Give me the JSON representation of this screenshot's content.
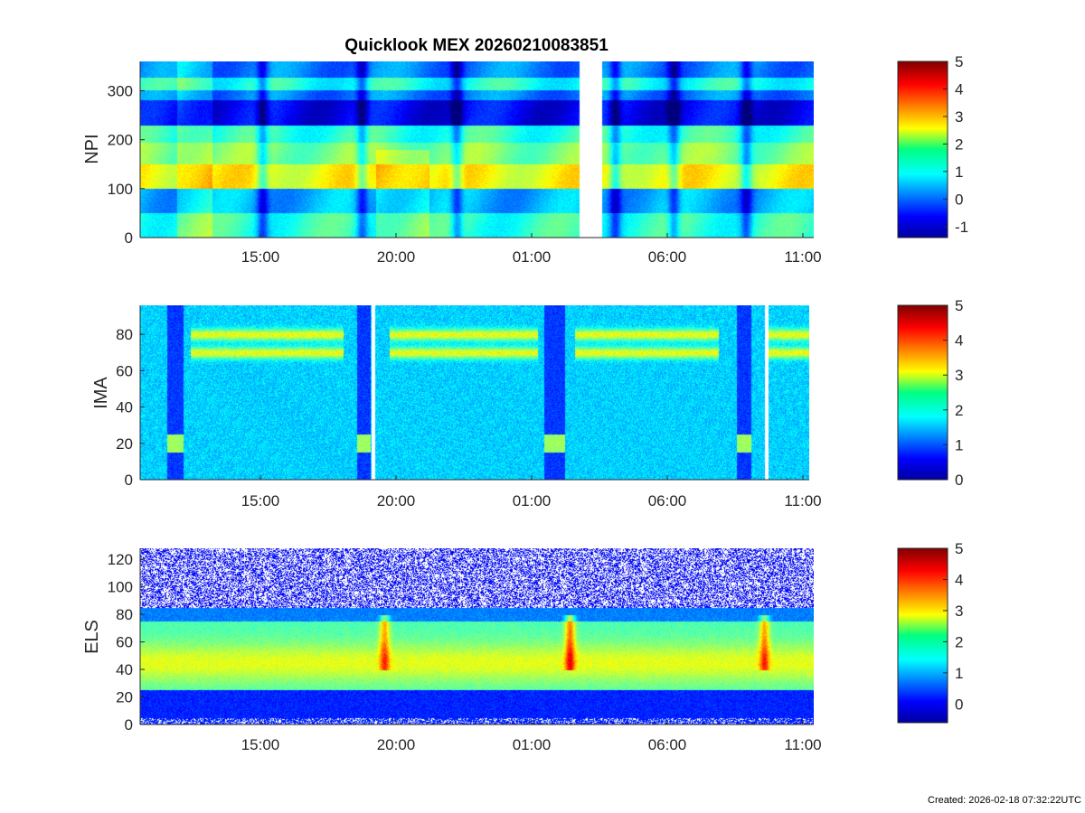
{
  "chart_data": [
    {
      "type": "heatmap",
      "title": "Quicklook MEX 20260210083851",
      "ylabel": "NPI",
      "ylim": [
        0,
        360
      ],
      "yticks": [
        "0",
        "100",
        "200",
        "300"
      ],
      "xticks": [
        "15:00",
        "20:00",
        "01:00",
        "06:00",
        "11:00"
      ],
      "colorbar": {
        "ticks": [
          "5",
          "4",
          "3",
          "2",
          "1",
          "0",
          "-1"
        ],
        "range": [
          -1.4,
          5
        ]
      },
      "gaps": [
        [
          "02:45",
          "03:35"
        ]
      ]
    },
    {
      "type": "heatmap",
      "ylabel": "IMA",
      "ylim": [
        0,
        96
      ],
      "yticks": [
        "0",
        "20",
        "40",
        "60",
        "80"
      ],
      "xticks": [
        "15:00",
        "20:00",
        "01:00",
        "06:00",
        "11:00"
      ],
      "colorbar": {
        "ticks": [
          "5",
          "4",
          "3",
          "2",
          "1",
          "0"
        ],
        "range": [
          0,
          5
        ]
      },
      "gaps": [
        [
          "19:10",
          "19:15"
        ],
        [
          "09:40",
          "09:45"
        ]
      ]
    },
    {
      "type": "heatmap",
      "ylabel": "ELS",
      "ylim": [
        0,
        128
      ],
      "yticks": [
        "0",
        "20",
        "40",
        "60",
        "80",
        "100",
        "120"
      ],
      "xticks": [
        "15:00",
        "20:00",
        "01:00",
        "06:00",
        "11:00"
      ],
      "colorbar": {
        "ticks": [
          "5",
          "4",
          "3",
          "2",
          "1",
          "0"
        ],
        "range": [
          -0.6,
          5
        ]
      }
    }
  ],
  "footer": "Created: 2026-02-18 07:32:22UTC"
}
